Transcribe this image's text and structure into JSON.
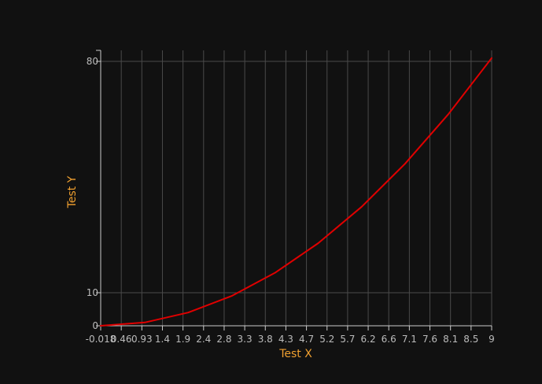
{
  "chart_data": {
    "type": "line",
    "title": "",
    "xlabel": "Test X",
    "ylabel": "Test Y",
    "xlim": [
      -0.018,
      9
    ],
    "ylim": [
      0,
      80
    ],
    "x_ticks": [
      "-0.018",
      "0.46",
      "0.93",
      "1.4",
      "1.9",
      "2.4",
      "2.8",
      "3.3",
      "3.8",
      "4.3",
      "4.7",
      "5.2",
      "5.7",
      "6.2",
      "6.6",
      "7.1",
      "7.6",
      "8.1",
      "8.5",
      "9"
    ],
    "y_ticks": [
      "0",
      "10",
      "80"
    ],
    "grid": true,
    "series": [
      {
        "color": "#e00000",
        "x": [
          -0.018,
          1,
          2,
          3,
          4,
          5,
          6,
          7,
          8,
          9
        ],
        "y": [
          0,
          1,
          4,
          9,
          16,
          25,
          36,
          49,
          64,
          81
        ]
      }
    ]
  },
  "colors": {
    "background": "#111111",
    "grid": "#4a4a4a",
    "axis": "#cccccc",
    "tick_label": "#bbbbbb",
    "axis_title": "#f0a030"
  }
}
